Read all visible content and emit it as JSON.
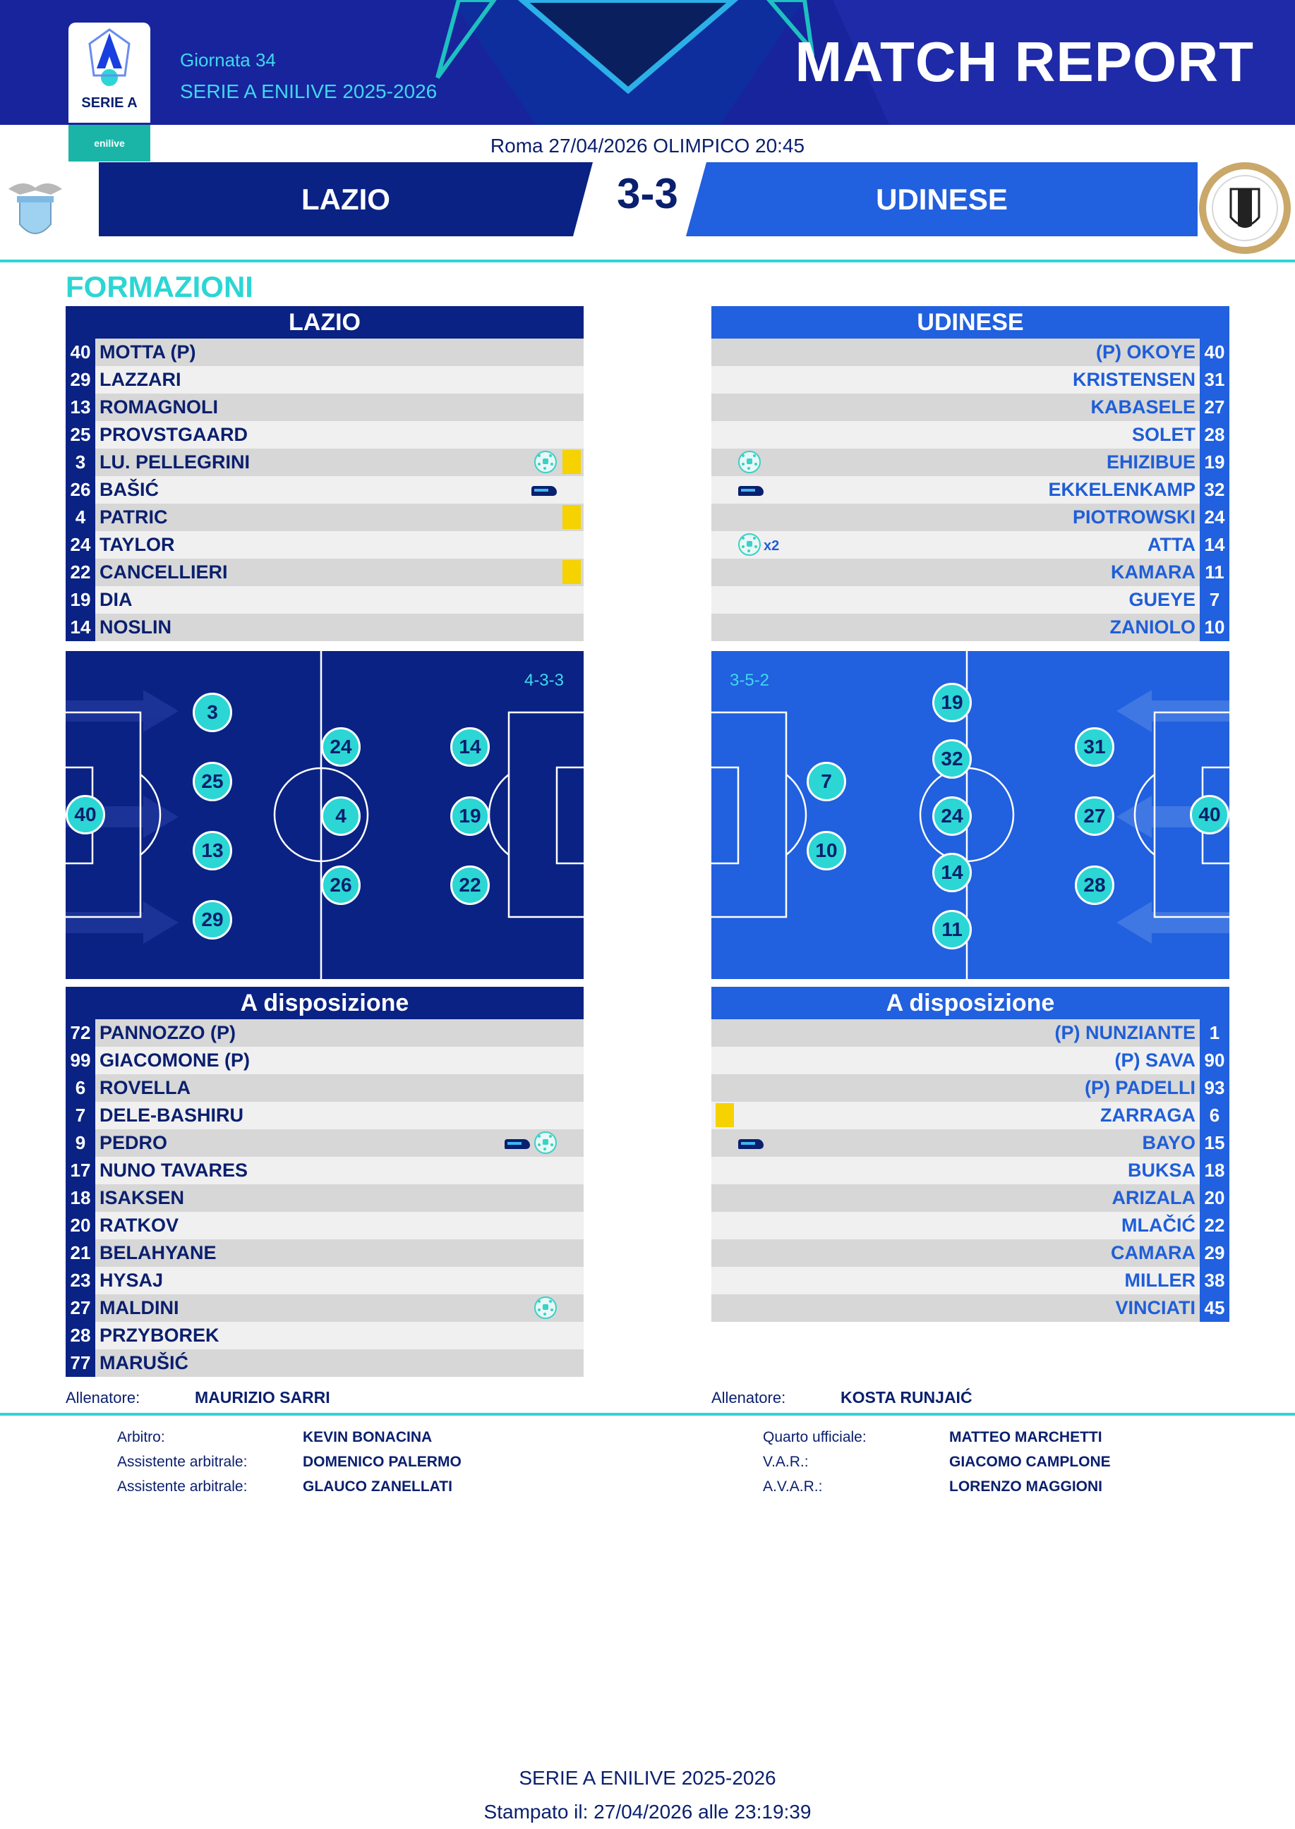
{
  "header": {
    "league_logo_text": "SERIE A",
    "sponsor": "enilive",
    "giornata": "Giornata 34",
    "season": "SERIE A ENILIVE 2025-2026",
    "title": "MATCH REPORT",
    "brand_color": "#18249c",
    "accent_color": "#2bd6d4"
  },
  "match": {
    "venue_line": "Roma 27/04/2026 OLIMPICO 20:45",
    "home": "LAZIO",
    "away": "UDINESE",
    "score": "3-3",
    "home_color": "#0a2283",
    "away_color": "#2160de",
    "home_crest_icon": "lazio-crest-icon",
    "away_crest_icon": "udinese-crest-icon"
  },
  "section_title": "FORMAZIONI",
  "lineups": {
    "home": {
      "title": "LAZIO",
      "starters": [
        {
          "num": "40",
          "name": "MOTTA   (P)"
        },
        {
          "num": "29",
          "name": "LAZZARI"
        },
        {
          "num": "13",
          "name": "ROMAGNOLI"
        },
        {
          "num": "25",
          "name": "PROVSTGAARD"
        },
        {
          "num": "3",
          "name": "LU. PELLEGRINI",
          "goal": true,
          "yellow": true
        },
        {
          "num": "26",
          "name": "BAŠIĆ",
          "assist": true
        },
        {
          "num": "4",
          "name": "PATRIC",
          "yellow": true
        },
        {
          "num": "24",
          "name": "TAYLOR"
        },
        {
          "num": "22",
          "name": "CANCELLIERI",
          "yellow": true
        },
        {
          "num": "19",
          "name": "DIA"
        },
        {
          "num": "14",
          "name": "NOSLIN"
        }
      ],
      "formation": "4-3-3",
      "bench_title": "A disposizione",
      "bench": [
        {
          "num": "72",
          "name": "PANNOZZO   (P)"
        },
        {
          "num": "99",
          "name": "GIACOMONE   (P)"
        },
        {
          "num": "6",
          "name": "ROVELLA"
        },
        {
          "num": "7",
          "name": "DELE-BASHIRU"
        },
        {
          "num": "9",
          "name": "PEDRO",
          "assist": true,
          "goal": true
        },
        {
          "num": "17",
          "name": "NUNO TAVARES"
        },
        {
          "num": "18",
          "name": "ISAKSEN"
        },
        {
          "num": "20",
          "name": "RATKOV"
        },
        {
          "num": "21",
          "name": "BELAHYANE"
        },
        {
          "num": "23",
          "name": "HYSAJ"
        },
        {
          "num": "27",
          "name": "MALDINI",
          "goal": true
        },
        {
          "num": "28",
          "name": "PRZYBOREK"
        },
        {
          "num": "77",
          "name": "MARUŠIĆ"
        }
      ],
      "coach_label": "Allenatore:",
      "coach": "MAURIZIO SARRI"
    },
    "away": {
      "title": "UDINESE",
      "starters": [
        {
          "num": "40",
          "name": "(P)   OKOYE"
        },
        {
          "num": "31",
          "name": "KRISTENSEN"
        },
        {
          "num": "27",
          "name": "KABASELE"
        },
        {
          "num": "28",
          "name": "SOLET"
        },
        {
          "num": "19",
          "name": "EHIZIBUE",
          "goal": true
        },
        {
          "num": "32",
          "name": "EKKELENKAMP",
          "assist": true
        },
        {
          "num": "24",
          "name": "PIOTROWSKI"
        },
        {
          "num": "14",
          "name": "ATTA",
          "goal": true,
          "goal_mult": "x2"
        },
        {
          "num": "11",
          "name": "KAMARA"
        },
        {
          "num": "7",
          "name": "GUEYE"
        },
        {
          "num": "10",
          "name": "ZANIOLO"
        }
      ],
      "formation": "3-5-2",
      "bench_title": "A disposizione",
      "bench": [
        {
          "num": "1",
          "name": "(P)   NUNZIANTE"
        },
        {
          "num": "90",
          "name": "(P)   SAVA"
        },
        {
          "num": "93",
          "name": "(P)   PADELLI"
        },
        {
          "num": "6",
          "name": "ZARRAGA",
          "yellow": true
        },
        {
          "num": "15",
          "name": "BAYO",
          "assist": true
        },
        {
          "num": "18",
          "name": "BUKSA"
        },
        {
          "num": "20",
          "name": "ARIZALA"
        },
        {
          "num": "22",
          "name": "MLAČIĆ"
        },
        {
          "num": "29",
          "name": "CAMARA"
        },
        {
          "num": "38",
          "name": "MILLER"
        },
        {
          "num": "45",
          "name": "VINCIATI"
        }
      ],
      "coach_label": "Allenatore:",
      "coach": "KOSTA RUNJAIĆ"
    }
  },
  "officials": [
    {
      "label": "Arbitro:",
      "name": "KEVIN BONACINA"
    },
    {
      "label": "Assistente arbitrale:",
      "name": "DOMENICO PALERMO"
    },
    {
      "label": "Assistente arbitrale:",
      "name": "GLAUCO ZANELLATI"
    },
    {
      "label": "Quarto ufficiale:",
      "name": "MATTEO MARCHETTI"
    },
    {
      "label": "V.A.R.:",
      "name": "GIACOMO CAMPLONE"
    },
    {
      "label": "A.V.A.R.:",
      "name": "LORENZO MAGGIONI"
    }
  ],
  "footer": {
    "line1": "SERIE A ENILIVE 2025-2026",
    "line2": "Stampato il: 27/04/2026 alle 23:19:39"
  }
}
